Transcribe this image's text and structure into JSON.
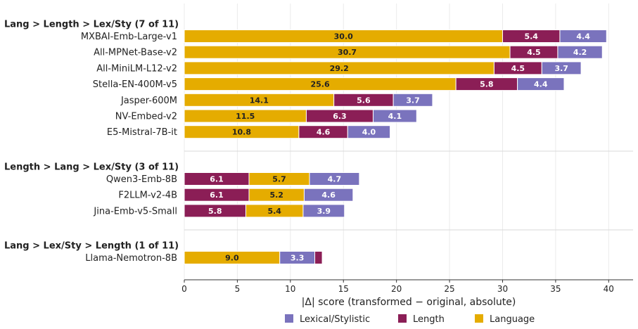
{
  "chart_data": {
    "type": "bar",
    "orientation": "horizontal",
    "stacked": true,
    "xlabel": "|Δ| score (transformed − original, absolute)",
    "xlim": [
      0,
      42.3
    ],
    "xticks": [
      "0",
      "5",
      "10",
      "15",
      "20",
      "25",
      "30",
      "35",
      "40"
    ],
    "grid": true,
    "legend_position": "bottom",
    "colors": {
      "Language": "#e5ac00",
      "Length": "#8b1e56",
      "Lexical/Stylistic": "#7a73bd"
    },
    "legend": [
      "Lexical/Stylistic",
      "Length",
      "Language"
    ],
    "groups": [
      {
        "title": "Lang > Length > Lex/Sty  (7 of 11)",
        "order": [
          "Language",
          "Length",
          "Lexical/Stylistic"
        ],
        "rows": [
          {
            "label": "MXBAI-Emb-Large-v1",
            "values": [
              30.0,
              5.4,
              4.4
            ],
            "texts": [
              "30.0",
              "5.4",
              "4.4"
            ]
          },
          {
            "label": "All-MPNet-Base-v2",
            "values": [
              30.7,
              4.5,
              4.2
            ],
            "texts": [
              "30.7",
              "4.5",
              "4.2"
            ]
          },
          {
            "label": "All-MiniLM-L12-v2",
            "values": [
              29.2,
              4.5,
              3.7
            ],
            "texts": [
              "29.2",
              "4.5",
              "3.7"
            ]
          },
          {
            "label": "Stella-EN-400M-v5",
            "values": [
              25.6,
              5.8,
              4.4
            ],
            "texts": [
              "25.6",
              "5.8",
              "4.4"
            ]
          },
          {
            "label": "Jasper-600M",
            "values": [
              14.1,
              5.6,
              3.7
            ],
            "texts": [
              "14.1",
              "5.6",
              "3.7"
            ]
          },
          {
            "label": "NV-Embed-v2",
            "values": [
              11.5,
              6.3,
              4.1
            ],
            "texts": [
              "11.5",
              "6.3",
              "4.1"
            ]
          },
          {
            "label": "E5-Mistral-7B-it",
            "values": [
              10.8,
              4.6,
              4.0
            ],
            "texts": [
              "10.8",
              "4.6",
              "4.0"
            ]
          }
        ]
      },
      {
        "title": "Length > Lang > Lex/Sty  (3 of 11)",
        "order": [
          "Length",
          "Language",
          "Lexical/Stylistic"
        ],
        "rows": [
          {
            "label": "Qwen3-Emb-8B",
            "values": [
              6.1,
              5.7,
              4.7
            ],
            "texts": [
              "6.1",
              "5.7",
              "4.7"
            ]
          },
          {
            "label": "F2LLM-v2-4B",
            "values": [
              6.1,
              5.2,
              4.6
            ],
            "texts": [
              "6.1",
              "5.2",
              "4.6"
            ]
          },
          {
            "label": "Jina-Emb-v5-Small",
            "values": [
              5.8,
              5.4,
              3.9
            ],
            "texts": [
              "5.8",
              "5.4",
              "3.9"
            ]
          }
        ]
      },
      {
        "title": "Lang > Lex/Sty > Length  (1 of 11)",
        "order": [
          "Language",
          "Lexical/Stylistic",
          "Length"
        ],
        "rows": [
          {
            "label": "Llama-Nemotron-8B",
            "values": [
              9.0,
              3.3,
              0.7
            ],
            "texts": [
              "9.0",
              "3.3",
              ""
            ]
          }
        ]
      }
    ]
  }
}
